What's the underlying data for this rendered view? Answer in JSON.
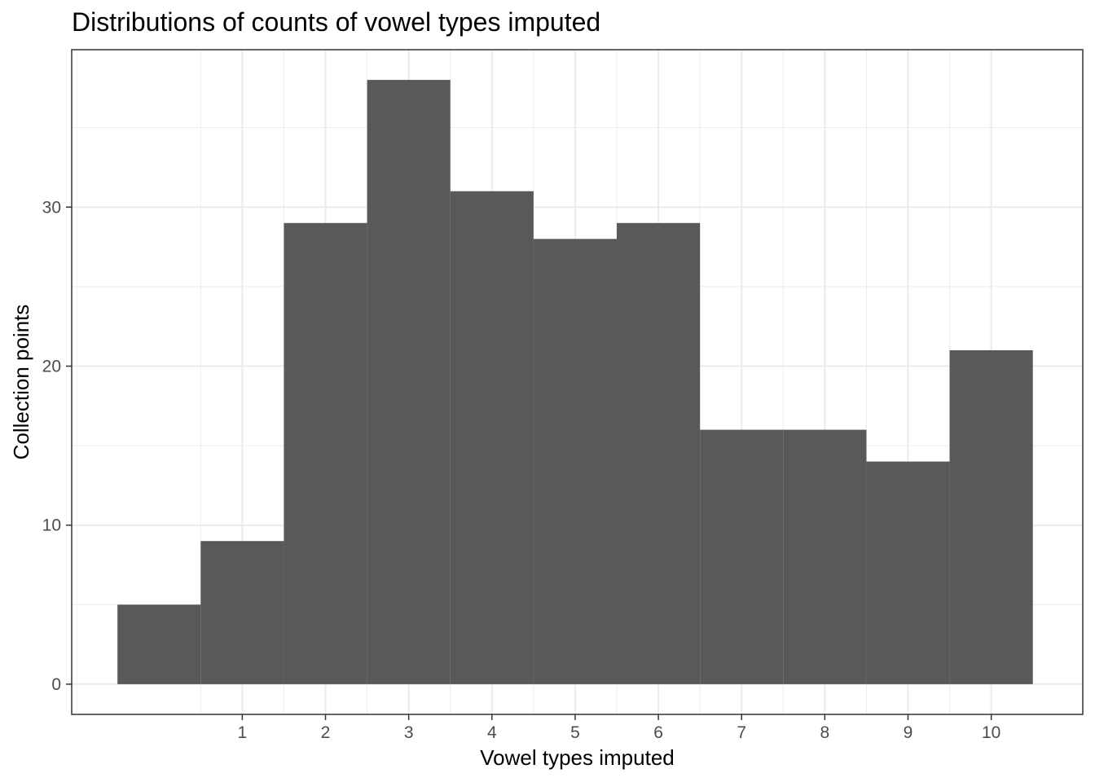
{
  "chart_data": {
    "type": "bar",
    "title": "Distributions of counts of vowel types imputed",
    "xlabel": "Vowel types imputed",
    "ylabel": "Collection points",
    "bins": [
      {
        "x": 0,
        "count": 5
      },
      {
        "x": 1,
        "count": 9
      },
      {
        "x": 2,
        "count": 29
      },
      {
        "x": 3,
        "count": 38
      },
      {
        "x": 4,
        "count": 31
      },
      {
        "x": 5,
        "count": 28
      },
      {
        "x": 6,
        "count": 29
      },
      {
        "x": 7,
        "count": 16
      },
      {
        "x": 8,
        "count": 16
      },
      {
        "x": 9,
        "count": 14
      },
      {
        "x": 10,
        "count": 21
      }
    ],
    "x_ticks": [
      "1",
      "2",
      "3",
      "4",
      "5",
      "6",
      "7",
      "8",
      "9",
      "10"
    ],
    "y_ticks": [
      "0",
      "10",
      "20",
      "30"
    ],
    "xlim": [
      -1.05,
      11.1
    ],
    "ylim": [
      -1.9,
      39.9
    ],
    "grid": true,
    "bar_color": "#595959",
    "grid_color": "#ebebeb",
    "panel_border_color": "#333333"
  }
}
